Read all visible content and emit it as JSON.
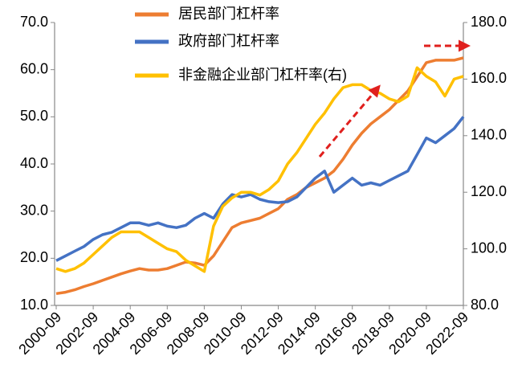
{
  "chart_data": {
    "type": "line",
    "categories": [
      "2000-09",
      null,
      null,
      null,
      "2002-09",
      null,
      null,
      null,
      "2004-09",
      null,
      null,
      null,
      "2006-09",
      null,
      null,
      null,
      "2008-09",
      null,
      null,
      null,
      "2010-09",
      null,
      null,
      null,
      "2012-09",
      null,
      null,
      null,
      "2014-09",
      null,
      null,
      null,
      "2016-09",
      null,
      null,
      null,
      "2018-09",
      null,
      null,
      null,
      "2020-09",
      null,
      null,
      null,
      "2022-09"
    ],
    "series": [
      {
        "name": "居民部门杠杆率",
        "color": "#ed7d31",
        "values": [
          12.5,
          12.8,
          13.3,
          14.0,
          14.6,
          15.3,
          16.0,
          16.7,
          17.3,
          17.8,
          17.5,
          17.5,
          17.8,
          18.5,
          19.2,
          19.0,
          18.5,
          20.5,
          23.5,
          26.5,
          27.5,
          28.0,
          28.5,
          29.5,
          30.5,
          32.5,
          33.5,
          35.0,
          36.0,
          37.0,
          38.5,
          41.0,
          44.0,
          46.5,
          48.5,
          50.0,
          51.5,
          53.5,
          55.5,
          58.5,
          61.5,
          62.0,
          62.0,
          62.0,
          62.5
        ]
      },
      {
        "name": "政府部门杠杆率",
        "color": "#4472c4",
        "values": [
          19.5,
          20.5,
          21.5,
          22.5,
          24.0,
          25.0,
          25.5,
          26.5,
          27.5,
          27.5,
          27.0,
          27.5,
          26.8,
          26.5,
          27.0,
          28.5,
          29.5,
          28.5,
          31.5,
          33.5,
          33.0,
          33.5,
          32.5,
          32.0,
          31.8,
          32.0,
          33.0,
          35.0,
          37.0,
          38.5,
          34.0,
          35.5,
          37.0,
          35.5,
          36.0,
          35.5,
          36.5,
          37.5,
          38.5,
          42.0,
          45.5,
          44.5,
          46.0,
          47.5,
          50.0
        ]
      },
      {
        "name": "非金融企业部门杠杆率(右)",
        "color": "#ffc000",
        "axis": "y2",
        "values": [
          93,
          92,
          93,
          95,
          98,
          101,
          104,
          106,
          106,
          106,
          104,
          102,
          100,
          99,
          96,
          94,
          92,
          108,
          115,
          118,
          120,
          120,
          119,
          121,
          124,
          130,
          134,
          139,
          144,
          148,
          153,
          157,
          158,
          158,
          156,
          155,
          153,
          152,
          154,
          164,
          161,
          159,
          154,
          160,
          161
        ]
      }
    ],
    "ylim": [
      10,
      70
    ],
    "yticks": [
      {
        "value": 10,
        "label": "10.0"
      },
      {
        "value": 20,
        "label": "20.0"
      },
      {
        "value": 30,
        "label": "30.0"
      },
      {
        "value": 40,
        "label": "40.0"
      },
      {
        "value": 50,
        "label": "50.0"
      },
      {
        "value": 60,
        "label": "60.0"
      },
      {
        "value": 70,
        "label": "70.0"
      }
    ],
    "y2lim": [
      80,
      180
    ],
    "y2ticks": [
      {
        "value": 80,
        "label": "80.0"
      },
      {
        "value": 100,
        "label": "100.0"
      },
      {
        "value": 120,
        "label": "120.0"
      },
      {
        "value": 140,
        "label": "140.0"
      },
      {
        "value": 160,
        "label": "160.0"
      },
      {
        "value": 180,
        "label": "180.0"
      }
    ]
  }
}
